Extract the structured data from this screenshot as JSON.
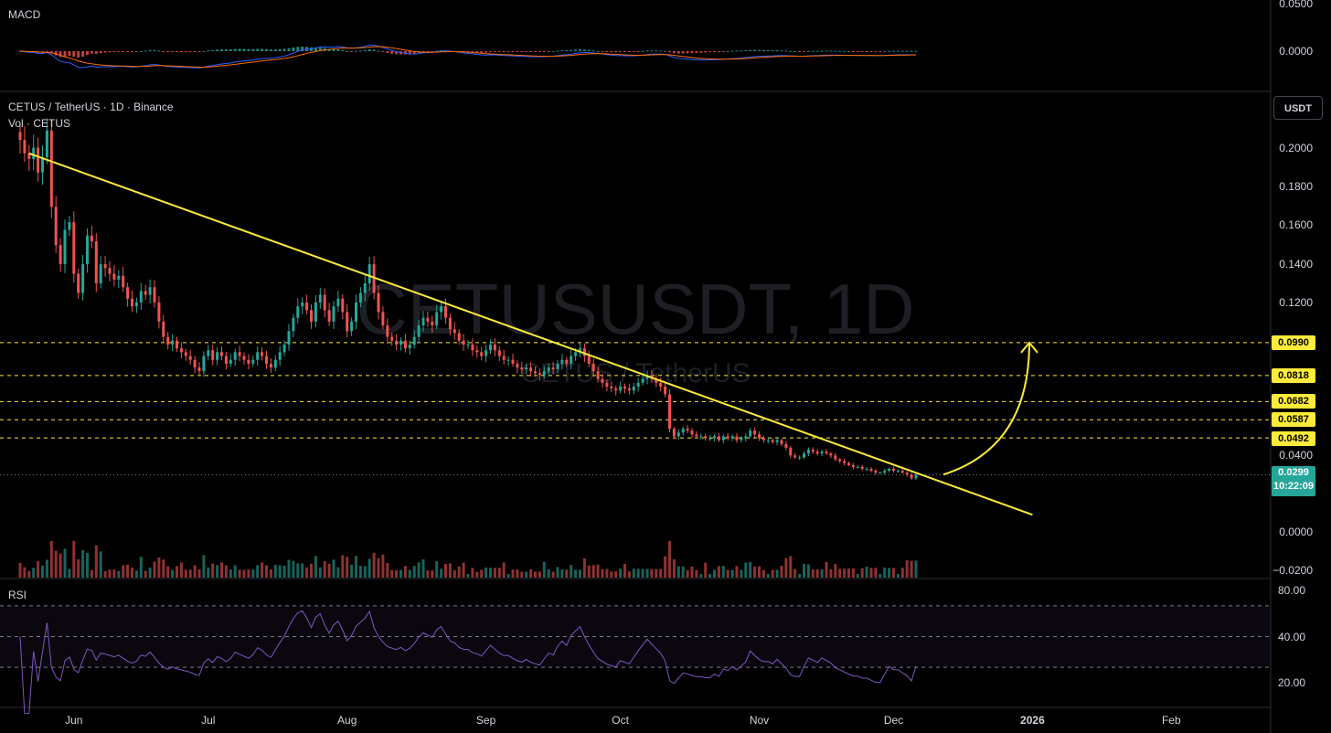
{
  "symbol": {
    "title": "CETUS / TetherUS · 1D · Binance",
    "volume_label": "Vol · CETUS",
    "watermark_main": "CETUSUSDT, 1D",
    "watermark_sub": "CETUS / TetherUS",
    "unit_button": "USDT"
  },
  "indicators": {
    "macd_label": "MACD",
    "rsi_label": "RSI"
  },
  "current_price": {
    "value": "0.0299",
    "countdown": "10:22:09"
  },
  "colors": {
    "up": "#26a69a",
    "down": "#ef5350",
    "trendline": "#ffeb3b",
    "rsi_line": "#7e57c2",
    "macd_line": "#2962ff",
    "signal_line": "#ff6d00"
  },
  "chart_data": {
    "type": "candlestick",
    "title": "CETUS / TetherUS · 1D · Binance",
    "x_ticks": [
      "Jun",
      "Jul",
      "Aug",
      "Sep",
      "Oct",
      "Nov",
      "Dec",
      "2026",
      "Feb"
    ],
    "price_axis": {
      "ticks": [
        "0.2000",
        "0.1800",
        "0.1600",
        "0.1400",
        "0.1200",
        "0.0400",
        "0.0000",
        "−0.0200"
      ],
      "range": [
        -0.022,
        0.225
      ]
    },
    "key_levels": [
      {
        "label": "0.0990",
        "value": 0.099
      },
      {
        "label": "0.0818",
        "value": 0.0818
      },
      {
        "label": "0.0682",
        "value": 0.0682
      },
      {
        "label": "0.0587",
        "value": 0.0587
      },
      {
        "label": "0.0492",
        "value": 0.0492
      }
    ],
    "close_series": {
      "start": "2025-05-20",
      "interval": "1D",
      "values": [
        0.205,
        0.198,
        0.195,
        0.201,
        0.188,
        0.196,
        0.21,
        0.17,
        0.15,
        0.14,
        0.158,
        0.162,
        0.135,
        0.125,
        0.14,
        0.155,
        0.152,
        0.13,
        0.14,
        0.138,
        0.135,
        0.132,
        0.134,
        0.128,
        0.122,
        0.118,
        0.12,
        0.126,
        0.124,
        0.128,
        0.12,
        0.11,
        0.102,
        0.098,
        0.1,
        0.096,
        0.094,
        0.092,
        0.09,
        0.086,
        0.084,
        0.092,
        0.095,
        0.09,
        0.094,
        0.092,
        0.088,
        0.09,
        0.094,
        0.092,
        0.09,
        0.088,
        0.09,
        0.094,
        0.092,
        0.088,
        0.086,
        0.09,
        0.094,
        0.098,
        0.105,
        0.112,
        0.118,
        0.12,
        0.116,
        0.11,
        0.12,
        0.124,
        0.116,
        0.11,
        0.118,
        0.122,
        0.115,
        0.105,
        0.11,
        0.12,
        0.125,
        0.13,
        0.14,
        0.125,
        0.115,
        0.108,
        0.102,
        0.1,
        0.098,
        0.1,
        0.096,
        0.098,
        0.102,
        0.108,
        0.112,
        0.11,
        0.108,
        0.115,
        0.118,
        0.112,
        0.106,
        0.104,
        0.1,
        0.098,
        0.098,
        0.095,
        0.094,
        0.092,
        0.095,
        0.098,
        0.095,
        0.092,
        0.09,
        0.09,
        0.088,
        0.086,
        0.085,
        0.086,
        0.084,
        0.083,
        0.082,
        0.084,
        0.086,
        0.085,
        0.088,
        0.09,
        0.088,
        0.092,
        0.094,
        0.096,
        0.092,
        0.088,
        0.084,
        0.08,
        0.078,
        0.076,
        0.075,
        0.074,
        0.076,
        0.075,
        0.074,
        0.076,
        0.078,
        0.08,
        0.082,
        0.08,
        0.078,
        0.076,
        0.072,
        0.054,
        0.05,
        0.052,
        0.054,
        0.053,
        0.051,
        0.05,
        0.05,
        0.049,
        0.049,
        0.05,
        0.048,
        0.05,
        0.049,
        0.05,
        0.048,
        0.049,
        0.05,
        0.053,
        0.051,
        0.049,
        0.048,
        0.048,
        0.047,
        0.048,
        0.046,
        0.044,
        0.04,
        0.039,
        0.039,
        0.041,
        0.043,
        0.042,
        0.041,
        0.042,
        0.041,
        0.04,
        0.038,
        0.037,
        0.036,
        0.035,
        0.034,
        0.034,
        0.033,
        0.033,
        0.032,
        0.031,
        0.031,
        0.032,
        0.033,
        0.032,
        0.032,
        0.031,
        0.03,
        0.028,
        0.0299
      ]
    },
    "trendline": [
      {
        "date": "2025-05-22",
        "value": 0.198
      },
      {
        "date": "2026-01-01",
        "value": 0.009
      }
    ],
    "projection_arrow": {
      "from_value": 0.03,
      "to_value": 0.099
    },
    "rsi_axis_ticks": [
      "80.00",
      "40.00",
      "20.00"
    ],
    "macd_axis_ticks": [
      "0.0500",
      "0.0000"
    ]
  }
}
